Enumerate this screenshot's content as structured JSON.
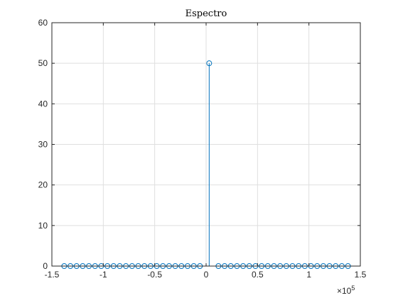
{
  "chart_data": {
    "type": "stem",
    "title": "Espectro",
    "xlabel": "",
    "ylabel": "",
    "xlim": [
      -150000,
      150000
    ],
    "ylim": [
      0,
      60
    ],
    "grid": true,
    "legend": null,
    "x_multiplier_label": {
      "base": "×10",
      "exponent": "5"
    },
    "xticks": [
      {
        "value": -150000,
        "label": "-1.5"
      },
      {
        "value": -100000,
        "label": "-1"
      },
      {
        "value": -50000,
        "label": "-0.5"
      },
      {
        "value": 0,
        "label": "0"
      },
      {
        "value": 50000,
        "label": "0.5"
      },
      {
        "value": 100000,
        "label": "1"
      },
      {
        "value": 150000,
        "label": "1.5"
      }
    ],
    "yticks": [
      {
        "value": 0,
        "label": "0"
      },
      {
        "value": 10,
        "label": "10"
      },
      {
        "value": 20,
        "label": "20"
      },
      {
        "value": 30,
        "label": "30"
      },
      {
        "value": 40,
        "label": "40"
      },
      {
        "value": 50,
        "label": "50"
      },
      {
        "value": 60,
        "label": "60"
      }
    ],
    "series": [
      {
        "x": [
          -138000,
          -132000,
          -126000,
          -120000,
          -114000,
          -108000,
          -102000,
          -96000,
          -90000,
          -84000,
          -78000,
          -72000,
          -66000,
          -60000,
          -54000,
          -48000,
          -42000,
          -36000,
          -30000,
          -24000,
          -18000,
          -12000,
          -6000,
          3000,
          12000,
          18000,
          24000,
          30000,
          36000,
          42000,
          48000,
          54000,
          60000,
          66000,
          72000,
          78000,
          84000,
          90000,
          96000,
          102000,
          108000,
          114000,
          120000,
          126000,
          132000,
          138000
        ],
        "values": [
          0,
          0,
          0,
          0,
          0,
          0,
          0,
          0,
          0,
          0,
          0,
          0,
          0,
          0,
          0,
          0,
          0,
          0,
          0,
          0,
          0,
          0,
          0,
          50,
          0,
          0,
          0,
          0,
          0,
          0,
          0,
          0,
          0,
          0,
          0,
          0,
          0,
          0,
          0,
          0,
          0,
          0,
          0,
          0,
          0,
          0
        ]
      }
    ],
    "colors": {
      "stem": "#0072BD",
      "axis": "#262626",
      "grid": "#DFDFDF",
      "background": "#FFFFFF"
    }
  }
}
